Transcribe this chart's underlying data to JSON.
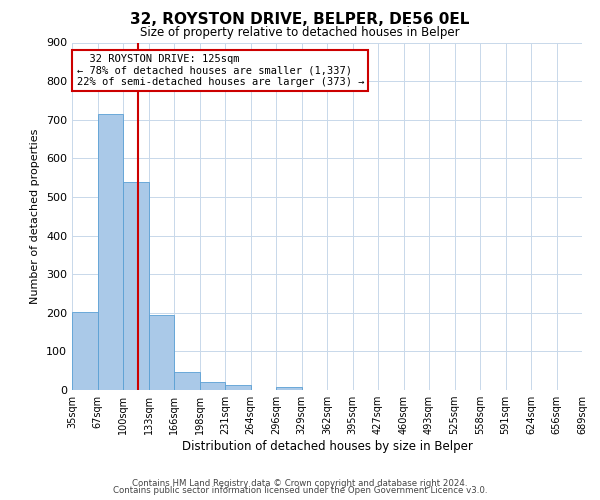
{
  "title": "32, ROYSTON DRIVE, BELPER, DE56 0EL",
  "subtitle": "Size of property relative to detached houses in Belper",
  "xlabel": "Distribution of detached houses by size in Belper",
  "ylabel": "Number of detached properties",
  "footer_line1": "Contains HM Land Registry data © Crown copyright and database right 2024.",
  "footer_line2": "Contains public sector information licensed under the Open Government Licence v3.0.",
  "bin_labels": [
    "35sqm",
    "67sqm",
    "100sqm",
    "133sqm",
    "166sqm",
    "198sqm",
    "231sqm",
    "264sqm",
    "296sqm",
    "329sqm",
    "362sqm",
    "395sqm",
    "427sqm",
    "460sqm",
    "493sqm",
    "525sqm",
    "558sqm",
    "591sqm",
    "624sqm",
    "656sqm",
    "689sqm"
  ],
  "bar_values": [
    201,
    714,
    538,
    193,
    46,
    21,
    14,
    0,
    8,
    0,
    0,
    0,
    0,
    0,
    0,
    0,
    0,
    0,
    0,
    0
  ],
  "bar_color": "#aac9e8",
  "bar_edge_color": "#5a9fd4",
  "ylim": [
    0,
    900
  ],
  "yticks": [
    0,
    100,
    200,
    300,
    400,
    500,
    600,
    700,
    800,
    900
  ],
  "property_line_x": 2.58,
  "property_line_color": "#cc0000",
  "annotation_title": "32 ROYSTON DRIVE: 125sqm",
  "annotation_line1": "← 78% of detached houses are smaller (1,337)",
  "annotation_line2": "22% of semi-detached houses are larger (373) →",
  "annotation_box_color": "#ffffff",
  "annotation_box_edge_color": "#cc0000",
  "background_color": "#ffffff",
  "grid_color": "#c8d8ea"
}
